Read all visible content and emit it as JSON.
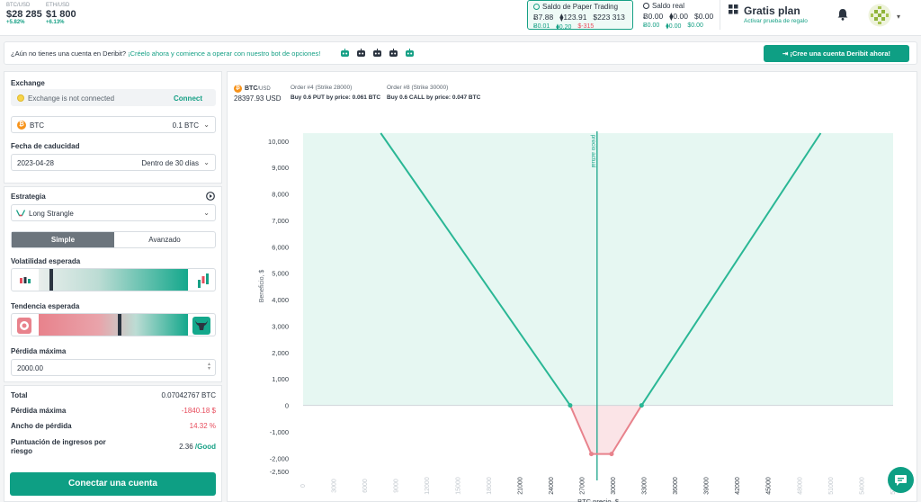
{
  "tickers": [
    {
      "pair": "BTC/USD",
      "price": "$28 285",
      "change": "+5.82%"
    },
    {
      "pair": "ETH/USD",
      "price": "$1 800",
      "change": "+6.13%"
    }
  ],
  "paper_balance": {
    "title": "Saldo de Paper Trading",
    "row1": [
      "Ƀ7.88",
      "⧫123.91",
      "$223 313"
    ],
    "row2": [
      "Ƀ0.01",
      "⧫0.20",
      "$-315"
    ]
  },
  "real_balance": {
    "title": "Saldo real",
    "row1": [
      "Ƀ0.00",
      "⧫0.00",
      "$0.00"
    ],
    "row2": [
      "Ƀ0.00",
      "⧫0.00",
      "$0.00"
    ]
  },
  "plan": {
    "title": "Gratis plan",
    "subtitle": "Activar prueba de regalo"
  },
  "banner": {
    "text": "¿Aún no tienes una cuenta en Deribit? ",
    "link": "¡Créelo ahora y comience a operar con nuestro bot de opciones!",
    "cta": "¡Cree una cuenta Deribit ahora!"
  },
  "sidebar": {
    "exchange_label": "Exchange",
    "exchange_status": "Exchange is not connected",
    "connect_link": "Connect",
    "asset": "BTC",
    "amount": "0.1 BTC",
    "expiry_label": "Fecha de caducidad",
    "expiry_date": "2023-04-28",
    "expiry_rel": "Dentro de 30 días",
    "strategy_label": "Estrategia",
    "strategy": "Long Strangle",
    "mode_simple": "Simple",
    "mode_advanced": "Avanzado",
    "volatility_label": "Volatilidad esperada",
    "trend_label": "Tendencia esperada",
    "maxloss_label": "Pérdida máxima",
    "maxloss_value": "2000.00",
    "summary": [
      {
        "k": "Total",
        "v": "0.07042767 BTC",
        "color": "#2b3440"
      },
      {
        "k": "Pérdida máxima",
        "v": "-1840.18 $",
        "color": "#e74c5c"
      },
      {
        "k": "Ancho de pérdida",
        "v": "14.32 %",
        "color": "#e74c5c"
      },
      {
        "k": "Puntuación de ingresos por riesgo",
        "v": "2.36",
        "v2": "/Good",
        "color": "#2b3440"
      }
    ],
    "connect_button": "Conectar una cuenta"
  },
  "chart_header": {
    "pair_prefix": "BTC",
    "pair_suffix": "/USD",
    "price": "28397.93",
    "currency": "USD",
    "order1_title": "Order #4 (Strike 28000)",
    "order1_desc": "Buy 0.6 PUT by price: 0.061 BTC",
    "order2_title": "Order #8 (Strike 30000)",
    "order2_desc": "Buy 0.6 CALL by price: 0.047 BTC"
  },
  "chart_data": {
    "type": "line",
    "xlabel": "BTC precio, $",
    "ylabel": "Beneficio, $",
    "current_price_label": "precio actual",
    "current_price": 28397.93,
    "xlim": [
      0,
      57000
    ],
    "ylim": [
      -2500,
      10000
    ],
    "x_ticks": [
      0,
      3000,
      6000,
      9000,
      12000,
      15000,
      18000,
      21000,
      24000,
      27000,
      30000,
      33000,
      36000,
      39000,
      42000,
      45000,
      48000,
      51000,
      54000,
      57000
    ],
    "y_ticks": [
      "10,000",
      "9,000",
      "8,000",
      "7,000",
      "6,000",
      "5,000",
      "4,000",
      "3,000",
      "2,000",
      "1,000",
      "0",
      "-1,000",
      "-2,000",
      "-2,500"
    ],
    "y_tick_values": [
      10000,
      9000,
      8000,
      7000,
      6000,
      5000,
      4000,
      3000,
      2000,
      1000,
      0,
      -1000,
      -2000,
      -2500
    ],
    "series": [
      {
        "values": [
          [
            7500,
            10300
          ],
          [
            25800,
            0
          ],
          [
            27850,
            -1840
          ],
          [
            29800,
            -1840
          ],
          [
            32700,
            0
          ],
          [
            50000,
            10300
          ]
        ]
      }
    ],
    "colors": {
      "profit": "#2ab795",
      "loss": "#e8828c",
      "profit_fill": "#e6f7f2",
      "loss_fill": "#fbe4e7"
    }
  }
}
